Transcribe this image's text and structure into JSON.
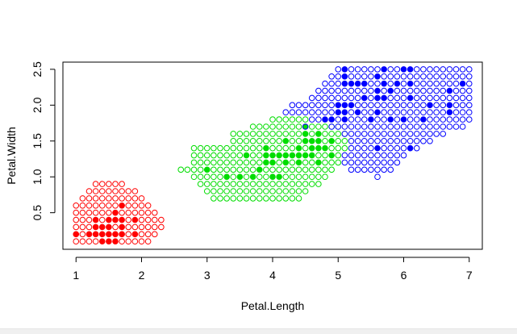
{
  "chart_data": {
    "type": "scatter",
    "title": "",
    "xlabel": "Petal.Length",
    "ylabel": "Petal.Width",
    "xlim": [
      0.8,
      7.2
    ],
    "ylim": [
      -0.01,
      2.6
    ],
    "x_ticks": [
      1,
      2,
      3,
      4,
      5,
      6,
      7
    ],
    "x_tick_labels": [
      "1",
      "2",
      "3",
      "4",
      "5",
      "6",
      "7"
    ],
    "y_ticks": [
      0.5,
      1.0,
      1.5,
      2.0,
      2.5
    ],
    "y_tick_labels": [
      "0.5",
      "1.0",
      "1.5",
      "2.0",
      "2.5"
    ],
    "grid": false,
    "legend": "none",
    "grid_step": {
      "x": 0.1,
      "y": 0.1
    },
    "colors": {
      "red": "#ff0000",
      "green": "#00dd00",
      "blue": "#0000ff"
    },
    "regions": [
      {
        "color": "red",
        "rows": [
          {
            "y": 0.9,
            "x": [
              1.3,
              1.7
            ]
          },
          {
            "y": 0.8,
            "x": [
              1.2,
              1.9
            ]
          },
          {
            "y": 0.7,
            "x": [
              1.1,
              2.0
            ]
          },
          {
            "y": 0.6,
            "x": [
              1.0,
              2.1
            ]
          },
          {
            "y": 0.5,
            "x": [
              1.0,
              2.2
            ]
          },
          {
            "y": 0.4,
            "x": [
              1.0,
              2.3
            ]
          },
          {
            "y": 0.3,
            "x": [
              1.0,
              2.3
            ]
          },
          {
            "y": 0.2,
            "x": [
              1.0,
              2.2
            ]
          },
          {
            "y": 0.1,
            "x": [
              1.0,
              2.1
            ]
          }
        ]
      },
      {
        "color": "green",
        "rows": [
          {
            "y": 1.8,
            "x": [
              4.0,
              4.5
            ]
          },
          {
            "y": 1.7,
            "x": [
              3.7,
              5.0
            ]
          },
          {
            "y": 1.6,
            "x": [
              3.4,
              5.1
            ]
          },
          {
            "y": 1.5,
            "x": [
              3.4,
              5.1
            ]
          },
          {
            "y": 1.4,
            "x": [
              2.8,
              5.1
            ]
          },
          {
            "y": 1.3,
            "x": [
              2.8,
              5.0
            ]
          },
          {
            "y": 1.2,
            "x": [
              2.8,
              5.0
            ]
          },
          {
            "y": 1.1,
            "x": [
              2.6,
              4.9
            ]
          },
          {
            "y": 1.0,
            "x": [
              2.8,
              4.8
            ]
          },
          {
            "y": 0.9,
            "x": [
              2.9,
              4.7
            ]
          },
          {
            "y": 0.8,
            "x": [
              3.0,
              4.5
            ]
          },
          {
            "y": 0.7,
            "x": [
              3.1,
              4.4
            ]
          }
        ]
      },
      {
        "color": "blue",
        "rows": [
          {
            "y": 2.5,
            "x": [
              5.0,
              7.0
            ]
          },
          {
            "y": 2.4,
            "x": [
              4.9,
              7.0
            ]
          },
          {
            "y": 2.3,
            "x": [
              4.8,
              7.0
            ]
          },
          {
            "y": 2.2,
            "x": [
              4.7,
              7.0
            ]
          },
          {
            "y": 2.1,
            "x": [
              4.6,
              7.0
            ]
          },
          {
            "y": 2.0,
            "x": [
              4.3,
              7.0
            ]
          },
          {
            "y": 1.9,
            "x": [
              4.2,
              7.0
            ]
          },
          {
            "y": 1.8,
            "x": [
              4.6,
              7.0
            ]
          },
          {
            "y": 1.7,
            "x": [
              4.9,
              6.9
            ]
          },
          {
            "y": 1.6,
            "x": [
              5.1,
              6.6
            ]
          },
          {
            "y": 1.5,
            "x": [
              5.2,
              6.4
            ]
          },
          {
            "y": 1.4,
            "x": [
              5.2,
              6.2
            ]
          },
          {
            "y": 1.3,
            "x": [
              5.1,
              6.0
            ]
          },
          {
            "y": 1.2,
            "x": [
              5.1,
              5.9
            ]
          },
          {
            "y": 1.1,
            "x": [
              5.2,
              5.8
            ]
          },
          {
            "y": 1.0,
            "x": [
              5.6,
              5.6
            ]
          }
        ]
      }
    ],
    "observations": {
      "red": [
        [
          1.4,
          0.1
        ],
        [
          1.5,
          0.1
        ],
        [
          1.6,
          0.1
        ],
        [
          1.0,
          0.2
        ],
        [
          1.2,
          0.2
        ],
        [
          1.3,
          0.2
        ],
        [
          1.4,
          0.2
        ],
        [
          1.5,
          0.2
        ],
        [
          1.6,
          0.2
        ],
        [
          1.7,
          0.2
        ],
        [
          1.9,
          0.2
        ],
        [
          1.3,
          0.3
        ],
        [
          1.4,
          0.3
        ],
        [
          1.5,
          0.3
        ],
        [
          1.7,
          0.3
        ],
        [
          1.3,
          0.4
        ],
        [
          1.5,
          0.4
        ],
        [
          1.6,
          0.4
        ],
        [
          1.7,
          0.4
        ],
        [
          1.9,
          0.4
        ],
        [
          1.6,
          0.5
        ],
        [
          1.7,
          0.6
        ]
      ],
      "green": [
        [
          4.0,
          1.0
        ],
        [
          3.5,
          1.0
        ],
        [
          3.3,
          1.0
        ],
        [
          3.7,
          1.0
        ],
        [
          4.1,
          1.0
        ],
        [
          3.0,
          1.1
        ],
        [
          3.8,
          1.1
        ],
        [
          4.0,
          1.2
        ],
        [
          4.4,
          1.2
        ],
        [
          3.9,
          1.2
        ],
        [
          4.2,
          1.2
        ],
        [
          4.7,
          1.2
        ],
        [
          4.0,
          1.3
        ],
        [
          4.1,
          1.3
        ],
        [
          4.2,
          1.3
        ],
        [
          4.3,
          1.3
        ],
        [
          4.4,
          1.3
        ],
        [
          4.5,
          1.3
        ],
        [
          4.6,
          1.3
        ],
        [
          4.9,
          1.3
        ],
        [
          3.9,
          1.3
        ],
        [
          3.6,
          1.3
        ],
        [
          4.4,
          1.4
        ],
        [
          4.6,
          1.4
        ],
        [
          4.7,
          1.4
        ],
        [
          4.8,
          1.4
        ],
        [
          3.9,
          1.4
        ],
        [
          4.5,
          1.5
        ],
        [
          4.6,
          1.5
        ],
        [
          4.7,
          1.5
        ],
        [
          4.9,
          1.5
        ],
        [
          4.2,
          1.5
        ],
        [
          4.5,
          1.6
        ],
        [
          4.7,
          1.6
        ],
        [
          5.0,
          1.7
        ]
      ],
      "blue": [
        [
          5.1,
          1.5
        ],
        [
          5.0,
          1.5
        ],
        [
          5.6,
          1.4
        ],
        [
          6.1,
          1.4
        ],
        [
          5.1,
          1.8
        ],
        [
          4.8,
          1.8
        ],
        [
          4.9,
          1.8
        ],
        [
          5.5,
          1.8
        ],
        [
          5.8,
          1.8
        ],
        [
          6.0,
          1.8
        ],
        [
          6.3,
          1.8
        ],
        [
          6.7,
          1.9
        ],
        [
          5.0,
          1.9
        ],
        [
          5.1,
          1.9
        ],
        [
          5.3,
          1.9
        ],
        [
          5.6,
          1.9
        ],
        [
          5.0,
          2.0
        ],
        [
          5.1,
          2.0
        ],
        [
          5.2,
          2.0
        ],
        [
          6.7,
          2.0
        ],
        [
          6.4,
          2.0
        ],
        [
          5.6,
          2.1
        ],
        [
          5.7,
          2.1
        ],
        [
          6.1,
          2.1
        ],
        [
          5.4,
          2.1
        ],
        [
          5.6,
          2.2
        ],
        [
          5.8,
          2.2
        ],
        [
          6.7,
          2.2
        ],
        [
          5.1,
          2.3
        ],
        [
          5.2,
          2.3
        ],
        [
          5.3,
          2.3
        ],
        [
          5.4,
          2.3
        ],
        [
          5.9,
          2.3
        ],
        [
          6.9,
          2.3
        ],
        [
          5.7,
          2.3
        ],
        [
          6.1,
          2.3
        ],
        [
          5.1,
          2.4
        ],
        [
          5.6,
          2.4
        ],
        [
          5.1,
          2.5
        ],
        [
          5.7,
          2.5
        ],
        [
          6.0,
          2.5
        ],
        [
          6.1,
          2.5
        ]
      ],
      "boundary_green_on_blue": [
        [
          4.5,
          1.7
        ]
      ]
    }
  }
}
